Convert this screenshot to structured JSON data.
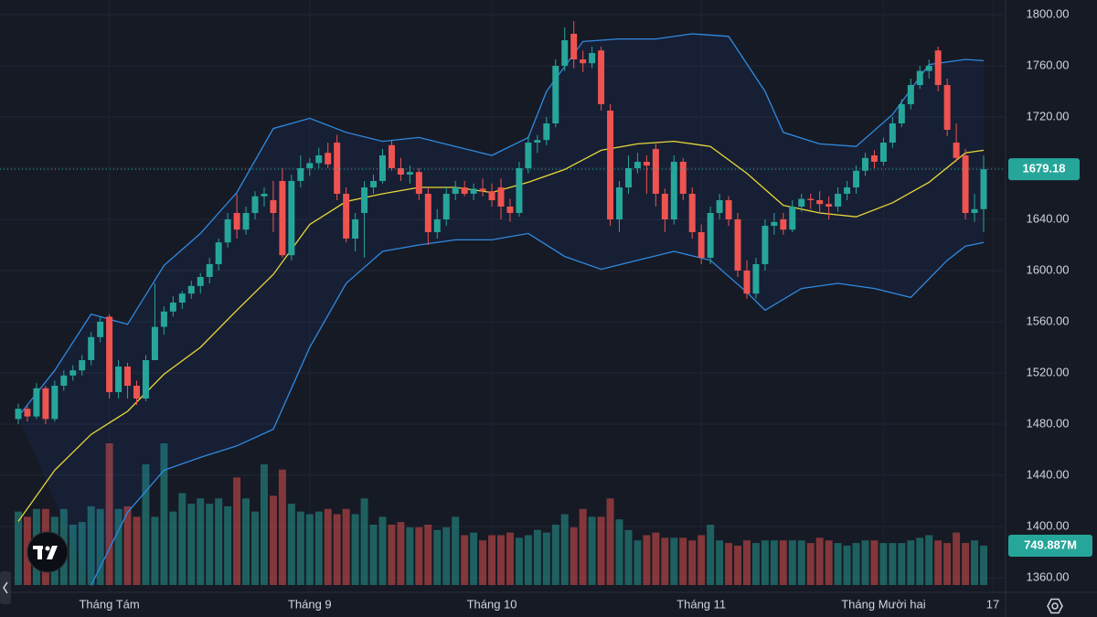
{
  "chart_data": {
    "type": "candlestick",
    "ylim": [
      1360,
      1800
    ],
    "yticks": [
      {
        "value": 1360,
        "label": "1360.00"
      },
      {
        "value": 1400,
        "label": "1400.00"
      },
      {
        "value": 1440,
        "label": "1440.00"
      },
      {
        "value": 1480,
        "label": "1480.00"
      },
      {
        "value": 1520,
        "label": "1520.00"
      },
      {
        "value": 1560,
        "label": "1560.00"
      },
      {
        "value": 1600,
        "label": "1600.00"
      },
      {
        "value": 1640,
        "label": "1640.00"
      },
      {
        "value": 1680,
        "label": "1680.00"
      },
      {
        "value": 1720,
        "label": "1720.00"
      },
      {
        "value": 1760,
        "label": "1760.00"
      },
      {
        "value": 1800,
        "label": "1800.00"
      }
    ],
    "xlabels": [
      {
        "index": 10,
        "label": "Tháng Tám"
      },
      {
        "index": 32,
        "label": "Tháng 9"
      },
      {
        "index": 52,
        "label": "Tháng 10"
      },
      {
        "index": 75,
        "label": "Tháng 11"
      },
      {
        "index": 95,
        "label": "Tháng Mười hai"
      },
      {
        "index": 107,
        "label": "17"
      }
    ],
    "up_color": "#26a69a",
    "down_color": "#ef5350",
    "grid": true,
    "candles": [
      [
        1484,
        1496,
        1480,
        1492
      ],
      [
        1492,
        1494,
        1482,
        1486
      ],
      [
        1486,
        1512,
        1484,
        1508
      ],
      [
        1508,
        1510,
        1480,
        1484
      ],
      [
        1484,
        1514,
        1482,
        1510
      ],
      [
        1510,
        1522,
        1506,
        1518
      ],
      [
        1518,
        1526,
        1514,
        1522
      ],
      [
        1522,
        1534,
        1518,
        1530
      ],
      [
        1530,
        1552,
        1526,
        1548
      ],
      [
        1548,
        1564,
        1544,
        1560
      ],
      [
        1564,
        1566,
        1500,
        1505
      ],
      [
        1505,
        1530,
        1500,
        1525
      ],
      [
        1525,
        1528,
        1500,
        1510
      ],
      [
        1510,
        1514,
        1495,
        1500
      ],
      [
        1500,
        1534,
        1498,
        1530
      ],
      [
        1530,
        1590,
        1530,
        1556
      ],
      [
        1556,
        1572,
        1550,
        1568
      ],
      [
        1568,
        1580,
        1564,
        1575
      ],
      [
        1575,
        1584,
        1570,
        1582
      ],
      [
        1582,
        1592,
        1578,
        1588
      ],
      [
        1588,
        1598,
        1582,
        1595
      ],
      [
        1595,
        1610,
        1590,
        1605
      ],
      [
        1605,
        1625,
        1600,
        1622
      ],
      [
        1622,
        1645,
        1618,
        1640
      ],
      [
        1645,
        1660,
        1625,
        1632
      ],
      [
        1632,
        1650,
        1628,
        1645
      ],
      [
        1645,
        1662,
        1640,
        1658
      ],
      [
        1658,
        1665,
        1650,
        1660
      ],
      [
        1655,
        1670,
        1630,
        1645
      ],
      [
        1670,
        1680,
        1610,
        1612
      ],
      [
        1612,
        1675,
        1608,
        1670
      ],
      [
        1670,
        1690,
        1665,
        1680
      ],
      [
        1680,
        1688,
        1674,
        1684
      ],
      [
        1684,
        1696,
        1680,
        1690
      ],
      [
        1692,
        1700,
        1680,
        1683
      ],
      [
        1700,
        1706,
        1655,
        1660
      ],
      [
        1660,
        1665,
        1622,
        1625
      ],
      [
        1625,
        1645,
        1615,
        1640
      ],
      [
        1645,
        1670,
        1610,
        1665
      ],
      [
        1665,
        1675,
        1660,
        1670
      ],
      [
        1670,
        1695,
        1668,
        1690
      ],
      [
        1698,
        1702,
        1678,
        1680
      ],
      [
        1680,
        1688,
        1670,
        1675
      ],
      [
        1675,
        1682,
        1668,
        1677
      ],
      [
        1677,
        1680,
        1655,
        1660
      ],
      [
        1660,
        1665,
        1620,
        1630
      ],
      [
        1630,
        1648,
        1625,
        1640
      ],
      [
        1640,
        1665,
        1635,
        1660
      ],
      [
        1660,
        1670,
        1655,
        1665
      ],
      [
        1665,
        1670,
        1658,
        1660
      ],
      [
        1660,
        1668,
        1655,
        1664
      ],
      [
        1664,
        1672,
        1658,
        1662
      ],
      [
        1662,
        1668,
        1650,
        1655
      ],
      [
        1665,
        1672,
        1640,
        1650
      ],
      [
        1650,
        1656,
        1638,
        1645
      ],
      [
        1645,
        1685,
        1642,
        1680
      ],
      [
        1680,
        1705,
        1676,
        1700
      ],
      [
        1700,
        1706,
        1692,
        1702
      ],
      [
        1702,
        1720,
        1698,
        1715
      ],
      [
        1715,
        1765,
        1712,
        1760
      ],
      [
        1760,
        1790,
        1756,
        1780
      ],
      [
        1785,
        1795,
        1758,
        1765
      ],
      [
        1765,
        1772,
        1755,
        1762
      ],
      [
        1762,
        1775,
        1758,
        1770
      ],
      [
        1772,
        1775,
        1725,
        1730
      ],
      [
        1725,
        1730,
        1635,
        1640
      ],
      [
        1640,
        1670,
        1630,
        1665
      ],
      [
        1665,
        1690,
        1660,
        1680
      ],
      [
        1680,
        1692,
        1676,
        1685
      ],
      [
        1685,
        1690,
        1660,
        1682
      ],
      [
        1695,
        1700,
        1650,
        1660
      ],
      [
        1660,
        1664,
        1630,
        1640
      ],
      [
        1640,
        1690,
        1636,
        1685
      ],
      [
        1685,
        1688,
        1655,
        1660
      ],
      [
        1660,
        1665,
        1625,
        1630
      ],
      [
        1630,
        1636,
        1605,
        1610
      ],
      [
        1610,
        1650,
        1605,
        1645
      ],
      [
        1645,
        1660,
        1640,
        1655
      ],
      [
        1655,
        1658,
        1635,
        1640
      ],
      [
        1640,
        1645,
        1595,
        1600
      ],
      [
        1600,
        1608,
        1578,
        1582
      ],
      [
        1582,
        1610,
        1578,
        1605
      ],
      [
        1605,
        1640,
        1600,
        1635
      ],
      [
        1635,
        1645,
        1628,
        1638
      ],
      [
        1640,
        1645,
        1628,
        1632
      ],
      [
        1632,
        1655,
        1630,
        1650
      ],
      [
        1650,
        1660,
        1646,
        1656
      ],
      [
        1656,
        1660,
        1648,
        1655
      ],
      [
        1655,
        1662,
        1645,
        1652
      ],
      [
        1652,
        1658,
        1640,
        1650
      ],
      [
        1650,
        1665,
        1646,
        1660
      ],
      [
        1660,
        1670,
        1655,
        1665
      ],
      [
        1665,
        1682,
        1660,
        1678
      ],
      [
        1678,
        1692,
        1674,
        1688
      ],
      [
        1690,
        1694,
        1680,
        1685
      ],
      [
        1685,
        1704,
        1682,
        1700
      ],
      [
        1700,
        1720,
        1696,
        1715
      ],
      [
        1715,
        1734,
        1712,
        1730
      ],
      [
        1730,
        1750,
        1726,
        1745
      ],
      [
        1745,
        1760,
        1742,
        1756
      ],
      [
        1756,
        1765,
        1750,
        1760
      ],
      [
        1772,
        1775,
        1740,
        1745
      ],
      [
        1745,
        1750,
        1705,
        1710
      ],
      [
        1700,
        1715,
        1685,
        1688
      ],
      [
        1690,
        1695,
        1640,
        1645
      ],
      [
        1645,
        1660,
        1638,
        1648
      ],
      [
        1648,
        1690,
        1630,
        1679.18
      ]
    ],
    "volume": {
      "values": [
        1400,
        1300,
        1450,
        1450,
        1300,
        1450,
        1150,
        1200,
        1500,
        1450,
        2700,
        1450,
        1500,
        1300,
        2300,
        1300,
        2700,
        1400,
        1750,
        1550,
        1650,
        1550,
        1650,
        1500,
        2050,
        1650,
        1400,
        2300,
        1700,
        2200,
        1550,
        1400,
        1350,
        1400,
        1450,
        1350,
        1450,
        1350,
        1650,
        1150,
        1300,
        1150,
        1200,
        1100,
        1100,
        1150,
        1050,
        1100,
        1300,
        950,
        1000,
        850,
        950,
        950,
        1000,
        900,
        950,
        1050,
        1000,
        1150,
        1350,
        1100,
        1450,
        1300,
        1300,
        1650,
        1250,
        1050,
        850,
        950,
        1000,
        900,
        900,
        900,
        850,
        950,
        1150,
        850,
        800,
        750,
        850,
        800,
        850,
        850,
        850,
        850,
        850,
        800,
        900,
        850,
        800,
        750,
        800,
        850,
        850,
        800,
        800,
        800,
        850,
        900,
        950,
        850,
        800,
        1000,
        800,
        850,
        749.887
      ],
      "last_value_label": "749.887M"
    },
    "bands": [
      {
        "name": "upper",
        "color": "#2f8ae0",
        "x": [
          0,
          4,
          8,
          12,
          16,
          20,
          24,
          28,
          32,
          36,
          40,
          44,
          48,
          52,
          56,
          58,
          62,
          66,
          70,
          74,
          78,
          82,
          84,
          88,
          92,
          96,
          100,
          104,
          106
        ],
        "values": [
          1486,
          1522,
          1566,
          1558,
          1604,
          1629,
          1661,
          1711,
          1719,
          1708,
          1701,
          1704,
          1697,
          1690,
          1704,
          1740,
          1779,
          1781,
          1781,
          1785,
          1783,
          1740,
          1708,
          1699,
          1697,
          1722,
          1761,
          1765,
          1764
        ]
      },
      {
        "name": "middle",
        "color": "#e8d838",
        "x": [
          0,
          4,
          8,
          12,
          16,
          20,
          24,
          28,
          32,
          36,
          40,
          44,
          48,
          52,
          56,
          60,
          64,
          68,
          72,
          76,
          80,
          84,
          88,
          92,
          96,
          100,
          104,
          106
        ],
        "values": [
          1404,
          1444,
          1472,
          1490,
          1519,
          1540,
          1569,
          1597,
          1636,
          1654,
          1660,
          1665,
          1665,
          1661,
          1669,
          1679,
          1694,
          1699,
          1701,
          1697,
          1676,
          1651,
          1645,
          1642,
          1653,
          1669,
          1692,
          1694
        ]
      },
      {
        "name": "lower",
        "color": "#2f8ae0",
        "x": [
          8,
          12,
          16,
          20,
          24,
          28,
          32,
          36,
          40,
          44,
          48,
          52,
          56,
          60,
          64,
          68,
          72,
          76,
          80,
          82,
          86,
          90,
          94,
          98,
          102,
          104,
          106
        ],
        "values": [
          1354,
          1411,
          1444,
          1454,
          1463,
          1476,
          1540,
          1590,
          1615,
          1620,
          1624,
          1624,
          1629,
          1611,
          1601,
          1608,
          1615,
          1608,
          1583,
          1569,
          1586,
          1590,
          1586,
          1579,
          1608,
          1619,
          1622
        ]
      }
    ]
  }
}
